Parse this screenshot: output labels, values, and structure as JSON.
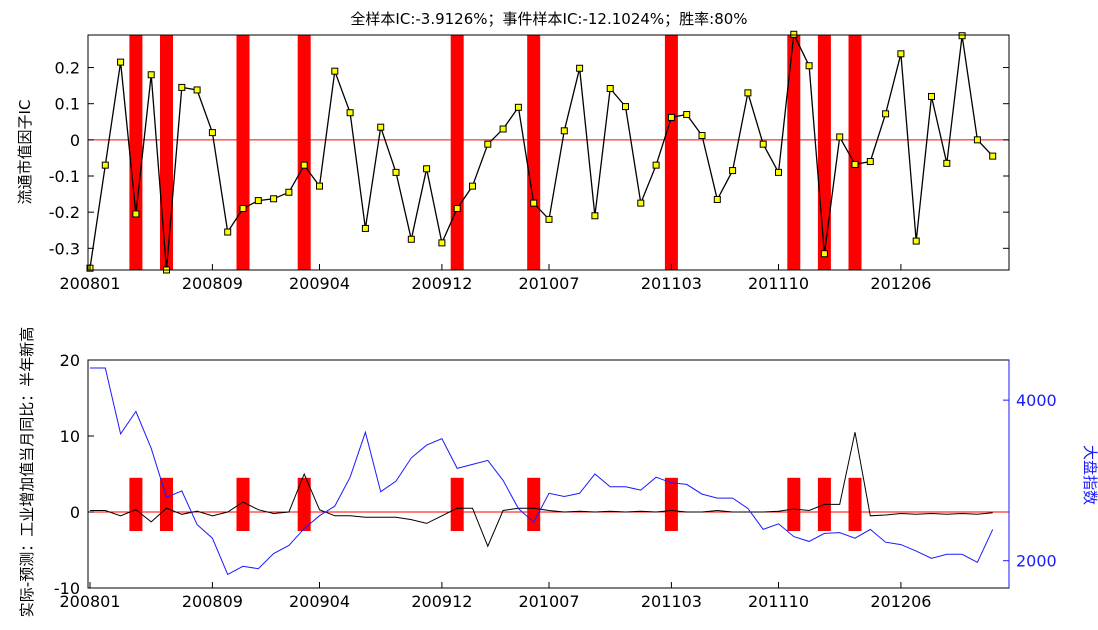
{
  "chart_data": [
    {
      "type": "line",
      "title": "全样本IC:-3.9126%；事件样本IC:-12.1024%；胜率:80%",
      "xlabel": "",
      "ylabel": "流通市值因子IC",
      "x_tick_labels": [
        "200801",
        "200809",
        "200904",
        "200912",
        "201007",
        "201103",
        "201110",
        "201206"
      ],
      "x_tick_months": [
        0,
        8,
        15,
        23,
        30,
        38,
        45,
        53
      ],
      "ylim": [
        -0.36,
        0.29
      ],
      "y_ticks": [
        -0.3,
        -0.2,
        -0.1,
        0,
        0.1,
        0.2
      ],
      "y_tick_labels": [
        "-0.3",
        "-0.2",
        "-0.1",
        "0",
        "0.1",
        "0.2"
      ],
      "grid": false,
      "reference_line": {
        "y": 0,
        "color": "#ff0000"
      },
      "event_months": [
        3,
        5,
        10,
        14,
        24,
        29,
        38,
        46,
        48,
        50
      ],
      "series": [
        {
          "color": "#000000",
          "marker_color": "#ffff00",
          "x": [
            0,
            1,
            2,
            3,
            4,
            5,
            6,
            7,
            8,
            9,
            10,
            11,
            12,
            13,
            14,
            15,
            16,
            17,
            18,
            19,
            20,
            21,
            22,
            23,
            24,
            25,
            26,
            27,
            28,
            29,
            30,
            31,
            32,
            33,
            34,
            35,
            36,
            37,
            38,
            39,
            40,
            41,
            42,
            43,
            44,
            45,
            46,
            47,
            48,
            49,
            50,
            51,
            52,
            53,
            54,
            55,
            56,
            57,
            58,
            59
          ],
          "values": [
            -0.355,
            -0.07,
            0.215,
            -0.205,
            0.18,
            -0.36,
            0.145,
            0.138,
            0.02,
            -0.255,
            -0.19,
            -0.168,
            -0.163,
            -0.145,
            -0.07,
            -0.128,
            0.19,
            0.075,
            -0.245,
            0.035,
            -0.09,
            -0.275,
            -0.08,
            -0.285,
            -0.19,
            -0.128,
            -0.012,
            0.03,
            0.09,
            -0.175,
            -0.22,
            0.025,
            0.198,
            -0.21,
            0.142,
            0.092,
            -0.175,
            -0.07,
            0.062,
            0.07,
            0.012,
            -0.165,
            -0.085,
            0.13,
            -0.012,
            -0.09,
            0.292,
            0.205,
            -0.315,
            0.008,
            -0.068,
            -0.06,
            0.072,
            0.238,
            -0.28,
            0.12,
            -0.065,
            0.288,
            0,
            -0.045
          ]
        }
      ]
    },
    {
      "type": "line",
      "title": "",
      "ylabel": "实际-预测：工业增加值当月同比：半年新高",
      "y2label": "大盘指数",
      "x_tick_labels": [
        "200801",
        "200809",
        "200904",
        "200912",
        "201007",
        "201103",
        "201110",
        "201206"
      ],
      "x_tick_months": [
        0,
        8,
        15,
        23,
        30,
        38,
        45,
        53
      ],
      "ylim": [
        -10,
        20
      ],
      "y_ticks": [
        -10,
        0,
        10,
        20
      ],
      "y_tick_labels": [
        "-10",
        "0",
        "10",
        "20"
      ],
      "y2lim": [
        1660,
        4500
      ],
      "y2_ticks": [
        2000,
        4000
      ],
      "y2_tick_labels": [
        "2000",
        "4000"
      ],
      "grid": false,
      "reference_line": {
        "y": 0,
        "color": "#ff0000"
      },
      "event_months": [
        3,
        5,
        10,
        14,
        24,
        29,
        38,
        46,
        48,
        50
      ],
      "event_bar_range": [
        -2.5,
        4.5
      ],
      "series": [
        {
          "axis": "left",
          "color": "#000000",
          "x": [
            0,
            1,
            2,
            3,
            4,
            5,
            6,
            7,
            8,
            9,
            10,
            11,
            12,
            13,
            14,
            15,
            16,
            17,
            18,
            19,
            20,
            21,
            22,
            23,
            24,
            25,
            26,
            27,
            28,
            29,
            30,
            31,
            32,
            33,
            34,
            35,
            36,
            37,
            38,
            39,
            40,
            41,
            42,
            43,
            44,
            45,
            46,
            47,
            48,
            49,
            50,
            51,
            52,
            53,
            54,
            55,
            56,
            57,
            58,
            59
          ],
          "values": [
            0.2,
            0.2,
            -0.5,
            0.3,
            -1.3,
            0.5,
            -0.3,
            0.1,
            -0.5,
            0,
            1.3,
            0.3,
            -0.2,
            0,
            5,
            0.3,
            -0.5,
            -0.5,
            -0.7,
            -0.7,
            -0.7,
            -1,
            -1.5,
            -0.5,
            0.5,
            0.5,
            -4.5,
            0.2,
            0.5,
            0.5,
            0.2,
            0,
            0.1,
            0,
            0.1,
            0,
            0.1,
            0,
            0.2,
            0,
            0,
            0.2,
            0,
            0,
            0,
            0.1,
            0.4,
            0.2,
            1,
            1,
            10.5,
            -0.5,
            -0.4,
            -0.2,
            -0.3,
            -0.2,
            -0.3,
            -0.2,
            -0.3,
            -0.1
          ]
        },
        {
          "axis": "right",
          "color": "#1a1aff",
          "x": [
            0,
            1,
            2,
            3,
            4,
            5,
            6,
            7,
            8,
            9,
            10,
            11,
            12,
            13,
            14,
            15,
            16,
            17,
            18,
            19,
            20,
            21,
            22,
            23,
            24,
            25,
            26,
            27,
            28,
            29,
            30,
            31,
            32,
            33,
            34,
            35,
            36,
            37,
            38,
            39,
            40,
            41,
            42,
            43,
            44,
            45,
            46,
            47,
            48,
            49,
            50,
            51,
            52,
            53,
            54,
            55,
            56,
            57,
            58,
            59
          ],
          "values": [
            4400,
            4400,
            3580,
            3860,
            3400,
            2790,
            2870,
            2450,
            2280,
            1830,
            1930,
            1900,
            2090,
            2190,
            2400,
            2560,
            2680,
            3040,
            3600,
            2860,
            2990,
            3280,
            3440,
            3520,
            3150,
            3200,
            3250,
            3000,
            2650,
            2480,
            2840,
            2800,
            2840,
            3080,
            2920,
            2920,
            2880,
            3040,
            2970,
            2950,
            2830,
            2780,
            2780,
            2650,
            2390,
            2460,
            2300,
            2240,
            2340,
            2350,
            2280,
            2390,
            2230,
            2200,
            2120,
            2030,
            2080,
            2080,
            1980,
            2390
          ]
        }
      ]
    }
  ]
}
